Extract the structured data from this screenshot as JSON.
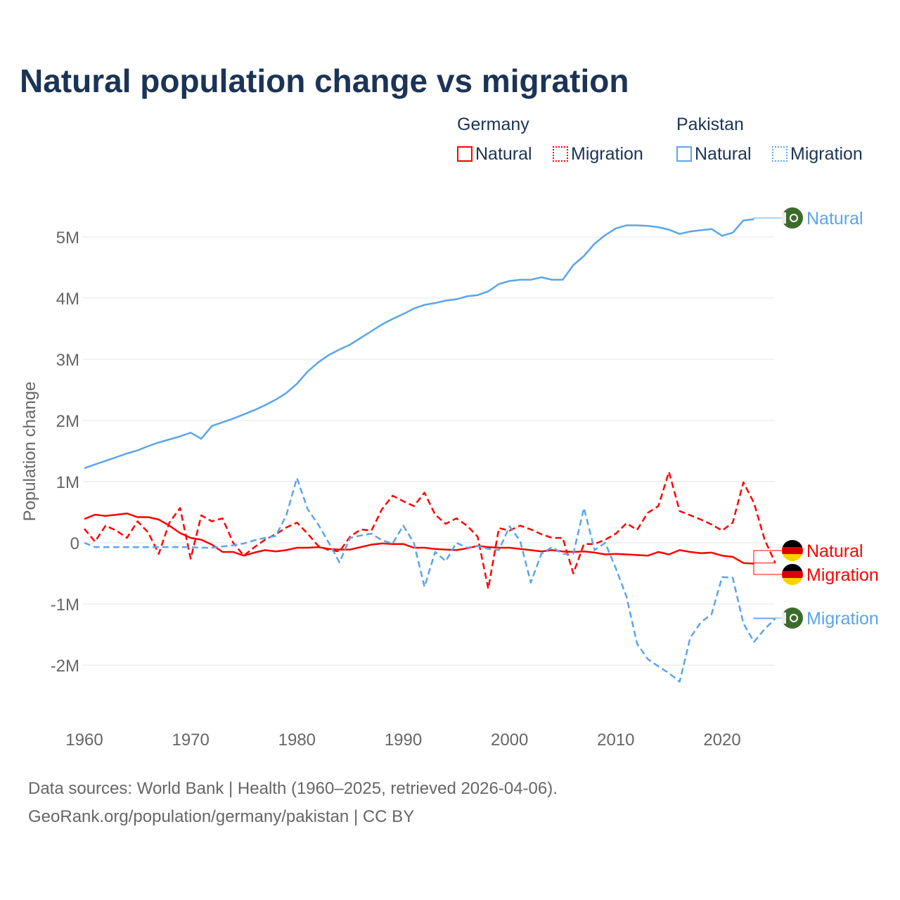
{
  "title": "Natural population change vs migration",
  "legend": {
    "groups": [
      {
        "name": "Germany",
        "items": [
          "Natural",
          "Migration"
        ],
        "color": "#ff0000"
      },
      {
        "name": "Pakistan",
        "items": [
          "Natural",
          "Migration"
        ],
        "color": "#5aa5ea"
      }
    ]
  },
  "footer": {
    "line1": "Data sources: World Bank | Health (1960–2025, retrieved 2026-04-06).",
    "line2": "GeoRank.org/population/germany/pakistan | CC BY"
  },
  "chart_data": {
    "type": "line",
    "title": "Natural population change vs migration",
    "xlabel": "",
    "ylabel": "Population change",
    "xlim": [
      1960,
      2025
    ],
    "ylim": [
      -2.9,
      5.6
    ],
    "y_unit": "millions",
    "xticks": [
      "1960",
      "1970",
      "1980",
      "1990",
      "2000",
      "2010",
      "2020"
    ],
    "yticks": [
      {
        "v": 5,
        "label": "5M"
      },
      {
        "v": 4,
        "label": "4M"
      },
      {
        "v": 3,
        "label": "3M"
      },
      {
        "v": 2,
        "label": "2M"
      },
      {
        "v": 1,
        "label": "1M"
      },
      {
        "v": 0,
        "label": "0"
      },
      {
        "v": -1,
        "label": "-1M"
      },
      {
        "v": -2,
        "label": "-2M"
      }
    ],
    "grid": true,
    "series": [
      {
        "name": "Pakistan Natural",
        "end_label": "Natural",
        "country": "Pakistan",
        "color": "#5aa5ea",
        "dash": false,
        "start": 1960,
        "values": [
          1.22,
          1.28,
          1.34,
          1.4,
          1.46,
          1.51,
          1.58,
          1.64,
          1.69,
          1.74,
          1.8,
          1.7,
          1.91,
          1.97,
          2.03,
          2.1,
          2.17,
          2.25,
          2.34,
          2.45,
          2.6,
          2.8,
          2.95,
          3.07,
          3.16,
          3.24,
          3.35,
          3.46,
          3.57,
          3.66,
          3.74,
          3.83,
          3.89,
          3.92,
          3.96,
          3.98,
          4.03,
          4.05,
          4.11,
          4.23,
          4.28,
          4.3,
          4.3,
          4.34,
          4.3,
          4.3,
          4.54,
          4.69,
          4.89,
          5.03,
          5.14,
          5.19,
          5.19,
          5.18,
          5.16,
          5.12,
          5.05,
          5.09,
          5.11,
          5.13,
          5.02,
          5.07,
          5.27,
          5.29
        ]
      },
      {
        "name": "Germany Natural",
        "end_label": "Natural",
        "country": "Germany",
        "color": "#ff0000",
        "dash": false,
        "start": 1960,
        "values": [
          0.39,
          0.46,
          0.44,
          0.46,
          0.48,
          0.42,
          0.42,
          0.38,
          0.28,
          0.16,
          0.08,
          0.05,
          -0.03,
          -0.15,
          -0.15,
          -0.21,
          -0.16,
          -0.12,
          -0.14,
          -0.12,
          -0.08,
          -0.08,
          -0.07,
          -0.1,
          -0.11,
          -0.11,
          -0.07,
          -0.03,
          -0.01,
          -0.02,
          -0.02,
          -0.08,
          -0.08,
          -0.1,
          -0.11,
          -0.12,
          -0.09,
          -0.05,
          -0.07,
          -0.08,
          -0.08,
          -0.1,
          -0.12,
          -0.14,
          -0.12,
          -0.14,
          -0.15,
          -0.14,
          -0.16,
          -0.19,
          -0.18,
          -0.19,
          -0.2,
          -0.21,
          -0.15,
          -0.19,
          -0.12,
          -0.15,
          -0.17,
          -0.16,
          -0.21,
          -0.23,
          -0.33,
          -0.34
        ]
      },
      {
        "name": "Germany Migration",
        "end_label": "Migration",
        "country": "Germany",
        "color": "#ff0000",
        "dash": true,
        "start": 1960,
        "values": [
          0.23,
          0.02,
          0.28,
          0.2,
          0.08,
          0.35,
          0.17,
          -0.18,
          0.33,
          0.57,
          -0.26,
          0.45,
          0.35,
          0.4,
          0.0,
          -0.21,
          -0.07,
          0.05,
          0.14,
          0.25,
          0.33,
          0.15,
          -0.05,
          -0.12,
          -0.14,
          0.1,
          0.22,
          0.2,
          0.55,
          0.77,
          0.68,
          0.6,
          0.82,
          0.46,
          0.31,
          0.4,
          0.28,
          0.1,
          -0.75,
          0.24,
          0.2,
          0.28,
          0.22,
          0.14,
          0.08,
          0.08,
          -0.5,
          -0.02,
          -0.02,
          0.05,
          0.15,
          0.32,
          0.21,
          0.49,
          0.6,
          1.16,
          0.52,
          0.45,
          0.38,
          0.3,
          0.2,
          0.33,
          0.99,
          0.65,
          0.05,
          -0.33
        ]
      },
      {
        "name": "Pakistan Migration",
        "end_label": "Migration",
        "country": "Pakistan",
        "color": "#5aa5ea",
        "dash": true,
        "start": 1960,
        "values": [
          0.0,
          -0.07,
          -0.07,
          -0.07,
          -0.07,
          -0.07,
          -0.07,
          -0.07,
          -0.07,
          -0.07,
          -0.07,
          -0.08,
          -0.08,
          -0.06,
          -0.04,
          -0.01,
          0.04,
          0.08,
          0.11,
          0.45,
          1.06,
          0.55,
          0.3,
          0.0,
          -0.32,
          0.08,
          0.12,
          0.15,
          0.04,
          -0.01,
          0.28,
          0.0,
          -0.72,
          -0.15,
          -0.3,
          0.0,
          -0.08,
          -0.05,
          -0.1,
          -0.12,
          0.27,
          0.03,
          -0.65,
          -0.18,
          -0.07,
          -0.18,
          -0.18,
          0.57,
          -0.12,
          0.0,
          -0.42,
          -0.88,
          -1.65,
          -1.9,
          -2.02,
          -2.13,
          -2.27,
          -1.55,
          -1.3,
          -1.17,
          -0.56,
          -0.57,
          -1.32,
          -1.62,
          -1.41,
          -1.24
        ]
      }
    ]
  }
}
